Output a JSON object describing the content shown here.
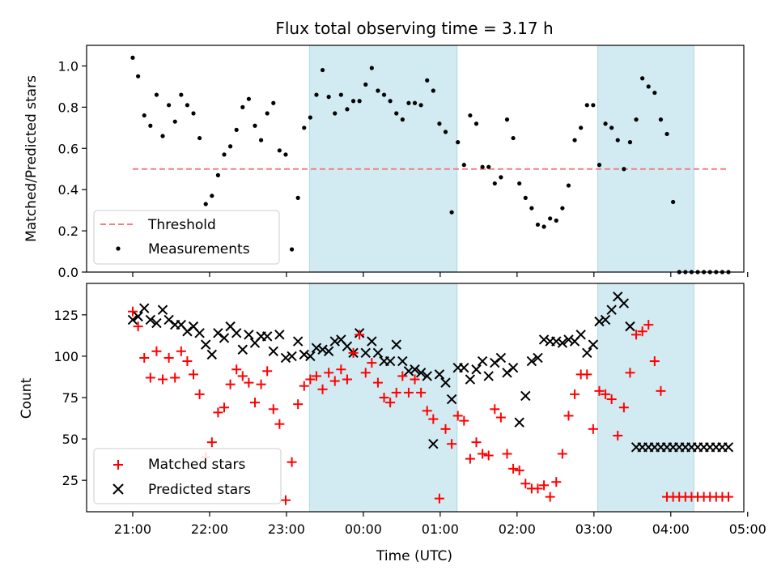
{
  "chart_data": {
    "type": "scatter",
    "title": "Flux total observing time = 3.17 h",
    "xlabel": "Time (UTC)",
    "x_unit": "hours since 21:00 UTC",
    "xlim": [
      -0.6,
      7.95
    ],
    "x_ticks": [
      0,
      1,
      2,
      3,
      4,
      5,
      6,
      7,
      8
    ],
    "x_tick_labels": [
      "21:00",
      "22:00",
      "23:00",
      "00:00",
      "01:00",
      "02:00",
      "03:00",
      "04:00",
      "05:00"
    ],
    "shaded_intervals": [
      [
        2.3,
        4.22
      ],
      [
        6.05,
        7.3
      ]
    ],
    "shade_color": "#add8e6",
    "x": [
      0.0,
      0.07,
      0.15,
      0.23,
      0.31,
      0.39,
      0.47,
      0.55,
      0.63,
      0.71,
      0.79,
      0.87,
      0.95,
      1.03,
      1.11,
      1.19,
      1.27,
      1.35,
      1.43,
      1.51,
      1.59,
      1.67,
      1.75,
      1.83,
      1.91,
      1.99,
      2.07,
      2.15,
      2.23,
      2.31,
      2.39,
      2.47,
      2.55,
      2.63,
      2.71,
      2.79,
      2.87,
      2.95,
      3.03,
      3.11,
      3.19,
      3.27,
      3.35,
      3.43,
      3.51,
      3.59,
      3.67,
      3.75,
      3.83,
      3.91,
      3.99,
      4.07,
      4.15,
      4.23,
      4.31,
      4.39,
      4.47,
      4.55,
      4.63,
      4.71,
      4.79,
      4.87,
      4.95,
      5.03,
      5.11,
      5.19,
      5.27,
      5.35,
      5.43,
      5.51,
      5.59,
      5.67,
      5.75,
      5.83,
      5.91,
      5.99,
      6.07,
      6.15,
      6.23,
      6.31,
      6.39,
      6.47,
      6.55,
      6.63,
      6.71,
      6.79,
      6.87,
      6.95,
      7.03,
      7.11,
      7.19,
      7.27,
      7.35,
      7.43,
      7.51,
      7.59,
      7.67,
      7.75
    ],
    "panels": [
      {
        "ylabel": "Matched/Predicted stars",
        "ylim": [
          0,
          1.1
        ],
        "y_ticks": [
          0.0,
          0.2,
          0.4,
          0.6,
          0.8,
          1.0
        ],
        "y_tick_labels": [
          "0.0",
          "0.2",
          "0.4",
          "0.6",
          "0.8",
          "1.0"
        ],
        "legend_position": "lower-left",
        "threshold": {
          "name": "Threshold",
          "value": 0.5,
          "x_range": [
            0.0,
            7.75
          ],
          "color": "#f08080"
        },
        "series": [
          {
            "name": "Measurements",
            "marker": "dot",
            "color": "#000000",
            "values": [
              1.04,
              0.95,
              0.76,
              0.71,
              0.86,
              0.66,
              0.81,
              0.73,
              0.86,
              0.81,
              0.77,
              0.65,
              0.33,
              0.37,
              0.47,
              0.57,
              0.61,
              0.69,
              0.8,
              0.84,
              0.71,
              0.64,
              0.77,
              0.82,
              0.59,
              0.57,
              0.11,
              0.36,
              0.7,
              0.75,
              0.86,
              0.98,
              0.85,
              0.77,
              0.86,
              0.79,
              0.83,
              0.83,
              0.91,
              0.99,
              0.88,
              0.86,
              0.83,
              0.77,
              0.74,
              0.82,
              0.82,
              0.81,
              0.93,
              0.88,
              0.72,
              0.68,
              0.29,
              0.63,
              0.52,
              0.76,
              0.72,
              0.51,
              0.51,
              0.43,
              0.46,
              0.74,
              0.65,
              0.43,
              0.36,
              0.31,
              0.23,
              0.22,
              0.26,
              0.25,
              0.31,
              0.42,
              0.64,
              0.7,
              0.81,
              0.81,
              0.52,
              0.72,
              0.7,
              0.64,
              0.5,
              0.63,
              0.74,
              0.94,
              0.9,
              0.87,
              0.74,
              0.67,
              0.34,
              0.0,
              0.0,
              0.0,
              0.0,
              0.0,
              0.0,
              0.0,
              0.0,
              0.0
            ]
          }
        ]
      },
      {
        "ylabel": "Count",
        "ylim": [
          6,
          144
        ],
        "y_ticks": [
          25,
          50,
          75,
          100,
          125
        ],
        "y_tick_labels": [
          "25",
          "50",
          "75",
          "100",
          "125"
        ],
        "legend_position": "lower-left",
        "series": [
          {
            "name": "Matched stars",
            "marker": "plus",
            "color": "#ff0000",
            "values": [
              127,
              118,
              99,
              87,
              103,
              86,
              99,
              87,
              103,
              97,
              89,
              77,
              39,
              48,
              66,
              69,
              83,
              92,
              88,
              84,
              72,
              83,
              91,
              68,
              59,
              13,
              36,
              71,
              82,
              86,
              88,
              80,
              90,
              85,
              92,
              86,
              102,
              113,
              90,
              96,
              84,
              75,
              72,
              78,
              88,
              78,
              86,
              78,
              67,
              62,
              14,
              56,
              47,
              64,
              61,
              38,
              48,
              41,
              40,
              68,
              63,
              41,
              32,
              31,
              23,
              20,
              20,
              22,
              15,
              24,
              41,
              64,
              77,
              89,
              89,
              56,
              79,
              77,
              74,
              52,
              69,
              90,
              113,
              115,
              119,
              97,
              79,
              15,
              15,
              15,
              15,
              15,
              15,
              15,
              15,
              15,
              15,
              15
            ]
          },
          {
            "name": "Predicted stars",
            "marker": "x",
            "color": "#000000",
            "values": [
              122,
              124,
              129,
              122,
              120,
              128,
              122,
              119,
              119,
              115,
              118,
              114,
              107,
              101,
              114,
              111,
              118,
              114,
              104,
              113,
              108,
              112,
              112,
              103,
              113,
              99,
              100,
              109,
              101,
              100,
              105,
              104,
              103,
              109,
              110,
              106,
              102,
              114,
              102,
              109,
              102,
              97,
              97,
              107,
              97,
              91,
              92,
              90,
              88,
              47,
              89,
              84,
              74,
              93,
              93,
              86,
              92,
              97,
              88,
              96,
              99,
              90,
              93,
              60,
              76,
              97,
              99,
              110,
              109,
              109,
              108,
              110,
              109,
              113,
              102,
              107,
              121,
              122,
              128,
              136,
              132,
              118,
              45,
              45,
              45,
              45,
              45,
              45,
              45,
              45,
              45,
              45,
              45,
              45,
              45,
              45,
              45,
              45
            ]
          }
        ]
      }
    ]
  }
}
